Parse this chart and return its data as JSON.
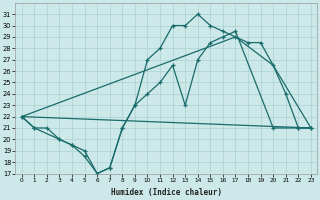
{
  "xlabel": "Humidex (Indice chaleur)",
  "background_color": "#cce8e8",
  "grid_color": "#aad0d0",
  "line_color": "#1a6b6b",
  "xlim": [
    -0.5,
    23.5
  ],
  "ylim": [
    17,
    32
  ],
  "xticks": [
    0,
    1,
    2,
    3,
    4,
    5,
    6,
    7,
    8,
    9,
    10,
    11,
    12,
    13,
    14,
    15,
    16,
    17,
    18,
    19,
    20,
    21,
    22,
    23
  ],
  "yticks": [
    17,
    18,
    19,
    20,
    21,
    22,
    23,
    24,
    25,
    26,
    27,
    28,
    29,
    30,
    31
  ],
  "line1_x": [
    0,
    1,
    3,
    4,
    5,
    6,
    7,
    8,
    9,
    10,
    11,
    12,
    13,
    14,
    15,
    16,
    17,
    20,
    22,
    23
  ],
  "line1_y": [
    22,
    21,
    20,
    19.5,
    19,
    17,
    17.5,
    21,
    23,
    24,
    25,
    26.5,
    23,
    27,
    28.5,
    29,
    29.5,
    21,
    21,
    21
  ],
  "line2_x": [
    0,
    1,
    2,
    3,
    4,
    5,
    6,
    7,
    8,
    9,
    10,
    11,
    12,
    13,
    14,
    15,
    16,
    17,
    18,
    19,
    20,
    21,
    22,
    23
  ],
  "line2_y": [
    22,
    21,
    21,
    20,
    19.5,
    18.5,
    17,
    17.5,
    21,
    23,
    27,
    28,
    30,
    30,
    31,
    30,
    29.5,
    29,
    28.5,
    28.5,
    26.5,
    24,
    21,
    21
  ],
  "line3_x": [
    0,
    23
  ],
  "line3_y": [
    22,
    21
  ],
  "line4_x": [
    0,
    17,
    20,
    23
  ],
  "line4_y": [
    22,
    29,
    26.5,
    21
  ]
}
